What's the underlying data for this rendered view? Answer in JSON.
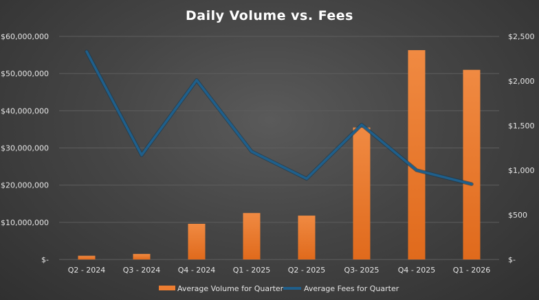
{
  "chart_data": {
    "type": "bar+line",
    "title": "Daily Volume vs. Fees",
    "categories": [
      "Q2 - 2024",
      "Q3 - 2024",
      "Q4 - 2024",
      "Q1 - 2025",
      "Q2 - 2025",
      "Q3- 2025",
      "Q4 - 2025",
      "Q1 - 2026"
    ],
    "series": [
      {
        "name": "Average Volume for Quarter",
        "type": "bar",
        "axis": "left",
        "color": "#ed7d31",
        "values": [
          1000000,
          1500000,
          9600000,
          12500000,
          11800000,
          35500000,
          56300000,
          51000000
        ]
      },
      {
        "name": "Average Fees for Quarter",
        "type": "line",
        "axis": "right",
        "color": "#1f5f8b",
        "values": [
          2330,
          1170,
          2010,
          1210,
          905,
          1510,
          1000,
          845
        ]
      }
    ],
    "left_axis": {
      "ylim": [
        0,
        60000000
      ],
      "ticks": [
        0,
        10000000,
        20000000,
        30000000,
        40000000,
        50000000,
        60000000
      ],
      "tick_labels": [
        "$-",
        "$10,000,000",
        "$20,000,000",
        "$30,000,000",
        "$40,000,000",
        "$50,000,000",
        "$60,000,000"
      ]
    },
    "right_axis": {
      "ylim": [
        0,
        2500
      ],
      "ticks": [
        0,
        500,
        1000,
        1500,
        2000,
        2500
      ],
      "tick_labels": [
        "$-",
        "$500",
        "$1,000",
        "$1,500",
        "$2,000",
        "$2,500"
      ]
    },
    "grid": true,
    "legend_position": "bottom"
  }
}
